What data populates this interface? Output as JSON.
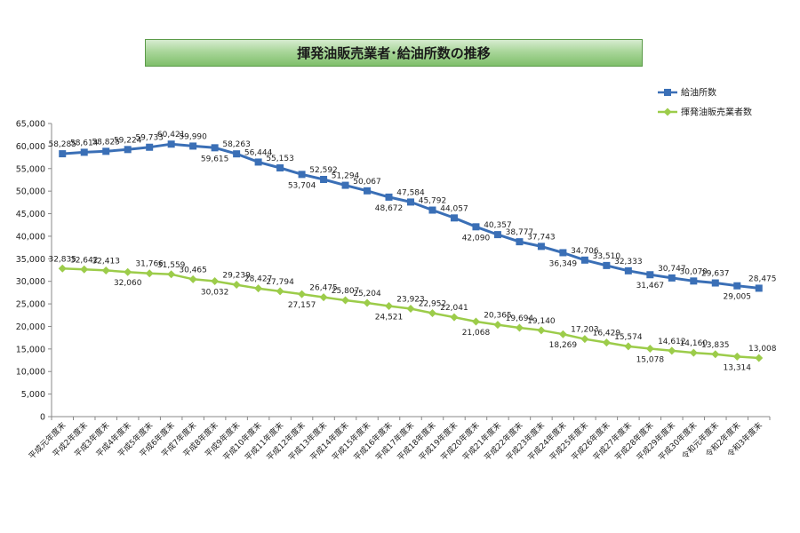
{
  "title": "揮発油販売業者･給油所数の推移",
  "chart_data": {
    "type": "line",
    "categories": [
      "平成元年度末",
      "平成2年度末",
      "平成3年度末",
      "平成4年度末",
      "平成5年度末",
      "平成6年度末",
      "平成7年度末",
      "平成8年度末",
      "平成9年度末",
      "平成10年度末",
      "平成11年度末",
      "平成12年度末",
      "平成13年度末",
      "平成14年度末",
      "平成15年度末",
      "平成16年度末",
      "平成17年度末",
      "平成18年度末",
      "平成19年度末",
      "平成20年度末",
      "平成21年度末",
      "平成22年度末",
      "平成23年度末",
      "平成24年度末",
      "平成25年度末",
      "平成26年度末",
      "平成27年度末",
      "平成28年度末",
      "平成29年度末",
      "平成30年度末",
      "令和元年度末",
      "令和2年度末",
      "令和3年度末"
    ],
    "series": [
      {
        "name": "給油所数",
        "color": "#3a6fb6",
        "marker": "square",
        "values": [
          58285,
          58614,
          58825,
          59224,
          59733,
          60421,
          59990,
          59615,
          58263,
          56444,
          55153,
          53704,
          52592,
          51294,
          50067,
          48672,
          47584,
          45792,
          44057,
          42090,
          40357,
          38777,
          37743,
          36349,
          34706,
          33510,
          32333,
          31467,
          30747,
          30070,
          29637,
          29005,
          28475
        ],
        "labels": [
          "58,285",
          "58,614",
          "58,825",
          "59,224",
          "59,733",
          "60,421",
          "59,990",
          "59,615",
          "58,263",
          "56,444",
          "55,153",
          "53,704",
          "52,592",
          "51,294",
          "50,067",
          "48,672",
          "47,584",
          "45,792",
          "44,057",
          "42,090",
          "40,357",
          "38,777",
          "37,743",
          "36,349",
          "34,706",
          "33,510",
          "32,333",
          "31,467",
          "30,747",
          "30,070",
          "29,637",
          "29,005",
          "28,475"
        ]
      },
      {
        "name": "揮発油販売業者数",
        "color": "#9ccc4a",
        "marker": "diamond",
        "values": [
          32835,
          32642,
          32413,
          32060,
          31766,
          31559,
          30465,
          30032,
          29239,
          28427,
          27794,
          27157,
          26475,
          25807,
          25204,
          24521,
          23923,
          22952,
          22041,
          21068,
          20365,
          19694,
          19140,
          18269,
          17203,
          16429,
          15574,
          15078,
          14612,
          14160,
          13835,
          13314,
          13008
        ],
        "labels": [
          "32,835",
          "32,642",
          "32,413",
          "32,060",
          "31,766",
          "31,559",
          "30,465",
          "30,032",
          "29,239",
          "28,427",
          "27,794",
          "27,157",
          "26,475",
          "25,807",
          "25,204",
          "24,521",
          "23,923",
          "22,952",
          "22,041",
          "21,068",
          "20,365",
          "19,694",
          "19,140",
          "18,269",
          "17,203",
          "16,429",
          "15,574",
          "15,078",
          "14,612",
          "14,160",
          "13,835",
          "13,314",
          "13,008"
        ]
      }
    ],
    "ylim": [
      0,
      65000
    ],
    "yticks": [
      0,
      5000,
      10000,
      15000,
      20000,
      25000,
      30000,
      35000,
      40000,
      45000,
      50000,
      55000,
      60000,
      65000
    ],
    "ytick_labels": [
      "0",
      "5,000",
      "10,000",
      "15,000",
      "20,000",
      "25,000",
      "30,000",
      "35,000",
      "40,000",
      "45,000",
      "50,000",
      "55,000",
      "60,000",
      "65,000"
    ],
    "xlabel": "",
    "ylabel": "",
    "grid": false,
    "legend": "top-right"
  }
}
